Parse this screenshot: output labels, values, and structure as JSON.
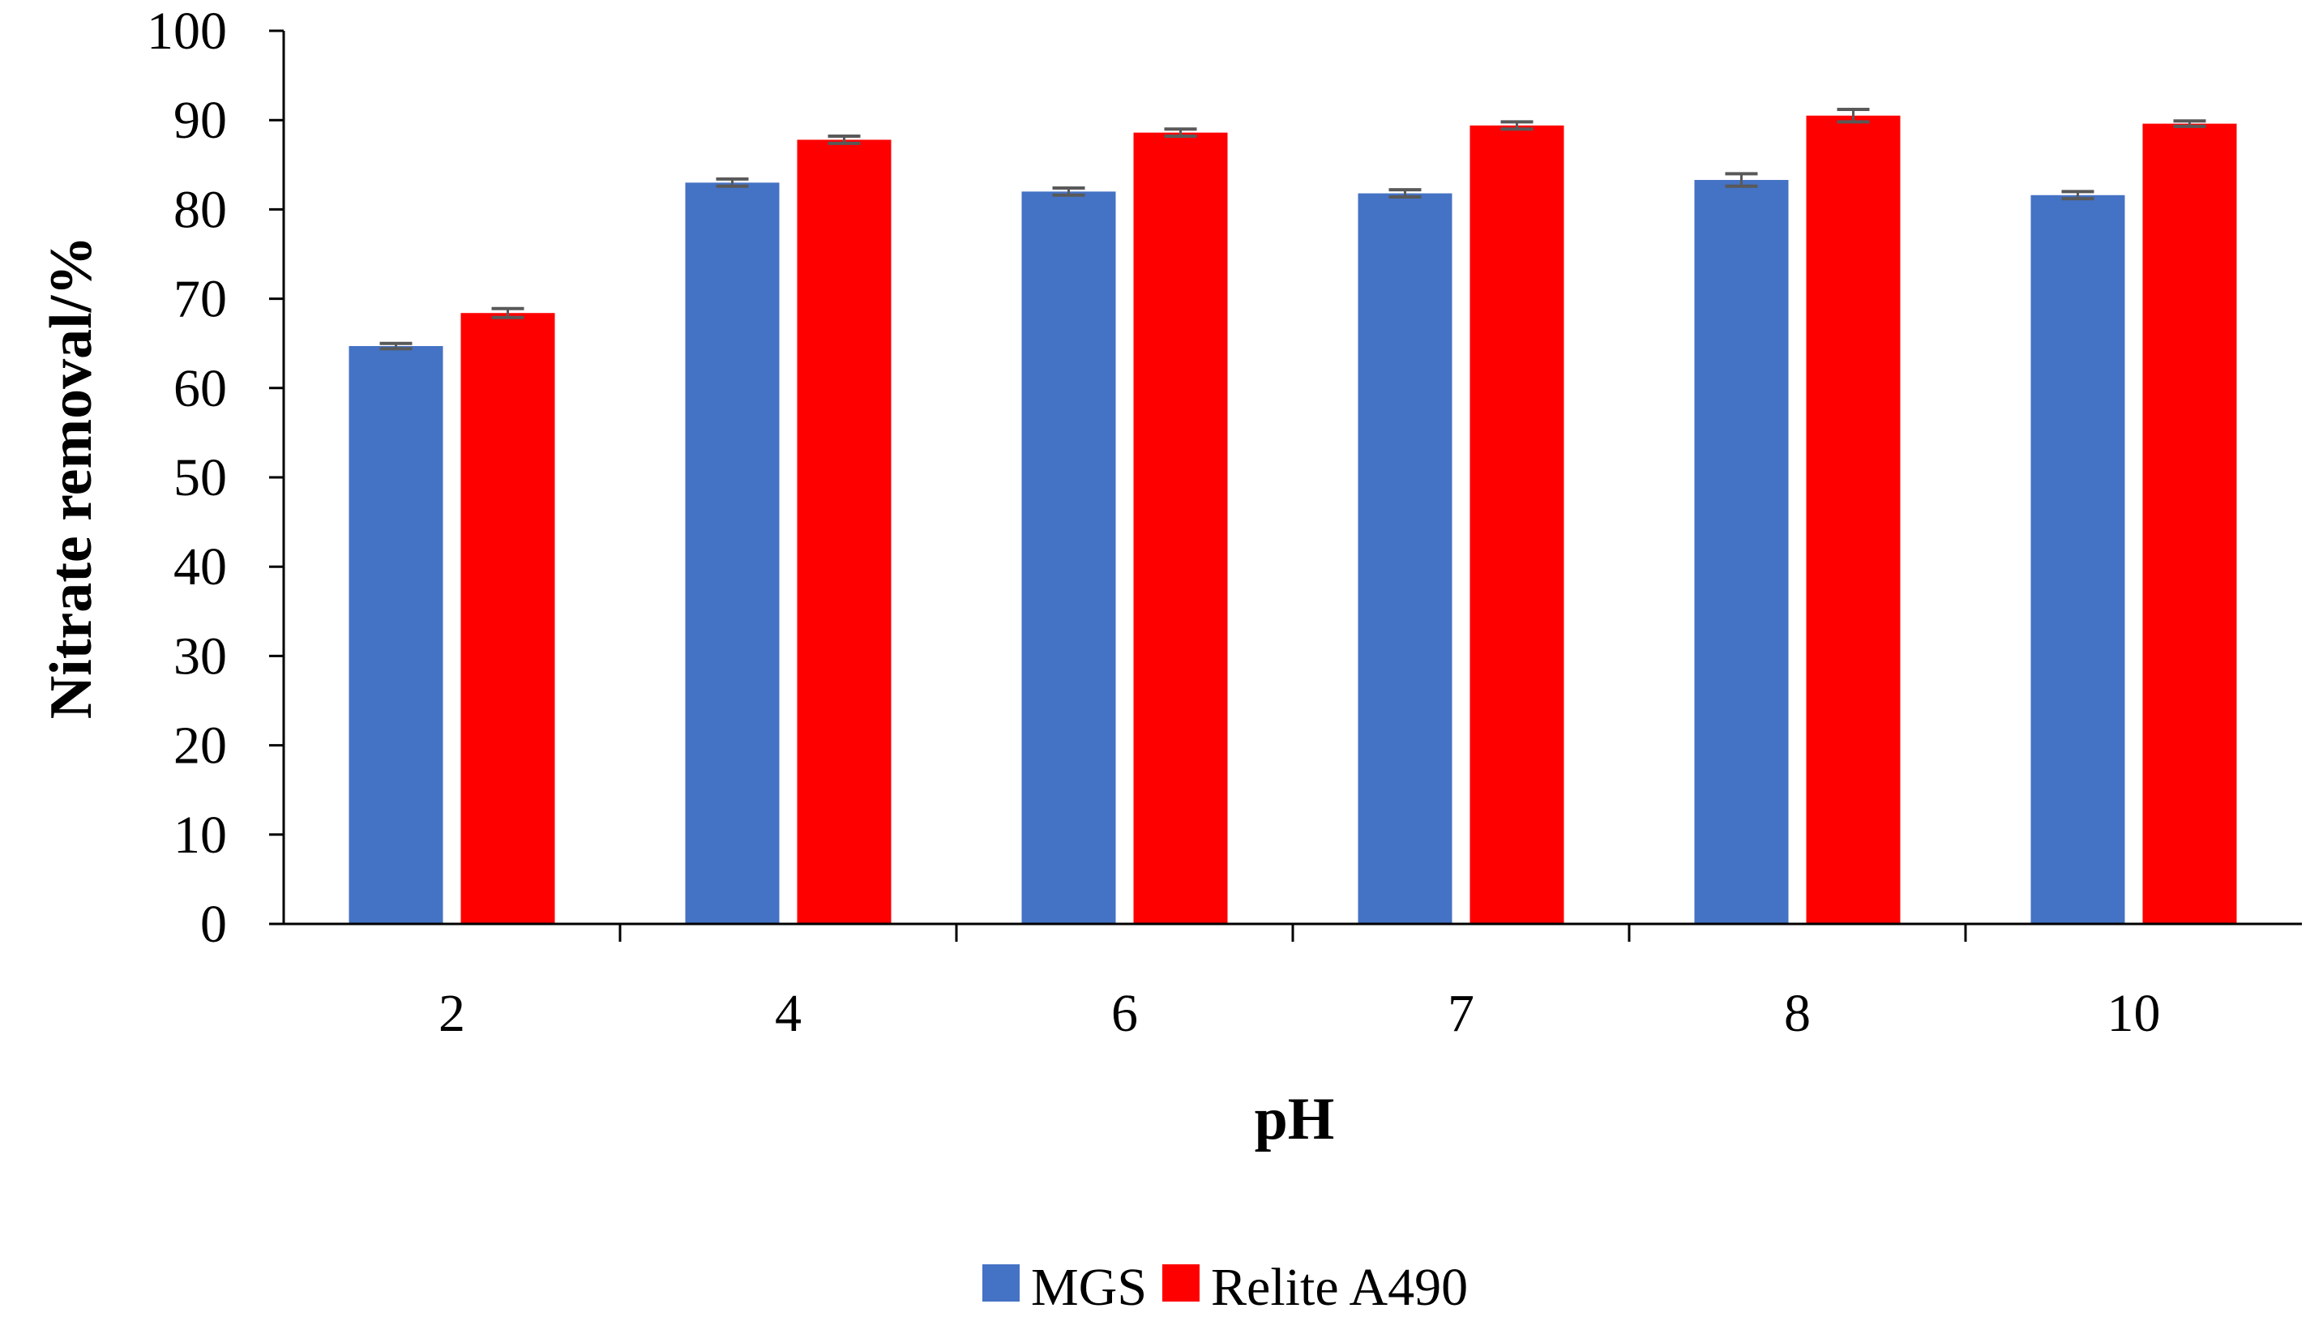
{
  "chart_data": {
    "type": "bar",
    "title": "",
    "xlabel": "pH",
    "ylabel": "Nitrate removal/%",
    "categories": [
      "2",
      "4",
      "6",
      "7",
      "8",
      "10"
    ],
    "series": [
      {
        "name": "MGS",
        "color": "#4472C4",
        "values": [
          64.7,
          83.0,
          82.0,
          81.8,
          83.3,
          81.6
        ],
        "errors": [
          0.3,
          0.4,
          0.4,
          0.4,
          0.7,
          0.4
        ]
      },
      {
        "name": "Relite A490",
        "color": "#FF0000",
        "values": [
          68.4,
          87.8,
          88.6,
          89.4,
          90.5,
          89.6
        ],
        "errors": [
          0.5,
          0.4,
          0.4,
          0.4,
          0.7,
          0.3
        ]
      }
    ],
    "ylim": [
      0,
      100
    ],
    "yticks": [
      0,
      10,
      20,
      30,
      40,
      50,
      60,
      70,
      80,
      90,
      100
    ],
    "error_bar_color": "#595959",
    "grid": false,
    "legend": "bottom-center"
  }
}
